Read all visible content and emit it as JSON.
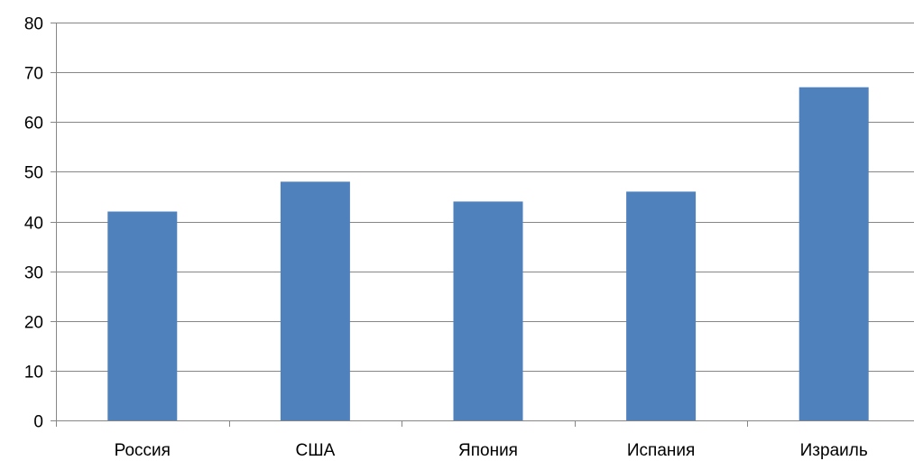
{
  "chart_data": {
    "type": "bar",
    "categories": [
      "Россия",
      "США",
      "Япония",
      "Испания",
      "Израиль"
    ],
    "values": [
      42,
      48,
      44,
      46,
      67
    ],
    "title": "",
    "xlabel": "",
    "ylabel": "",
    "ylim": [
      0,
      80
    ],
    "yticks": [
      0,
      10,
      20,
      30,
      40,
      50,
      60,
      70,
      80
    ],
    "grid": true,
    "legend": "none",
    "bar_color": "#4f81bd",
    "grid_color": "#868686"
  }
}
